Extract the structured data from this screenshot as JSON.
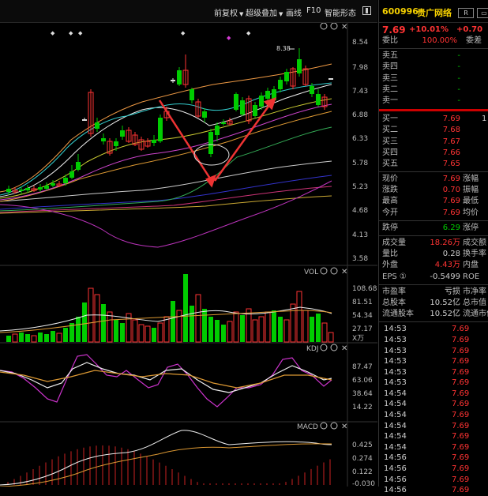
{
  "toolbar": {
    "items": [
      "前复权",
      "超级叠加",
      "画线",
      "F10",
      "智能形态"
    ]
  },
  "chart": {
    "price_axis": [
      "8.54",
      "7.98",
      "7.43",
      "6.88",
      "6.33",
      "5.78",
      "5.23",
      "4.68",
      "4.13",
      "3.58"
    ],
    "high_marker": "8.38",
    "vol_title": "VOL",
    "vol_axis": [
      "108.68",
      "81.51",
      "54.34",
      "27.17",
      "X万"
    ],
    "kdj_title": "KDJ",
    "kdj_axis": [
      "87.47",
      "63.06",
      "38.64",
      "14.22"
    ],
    "macd_title": "MACD",
    "macd_axis": [
      "0.425",
      "0.274",
      "0.122",
      "-0.030"
    ]
  },
  "quote": {
    "code": "600996",
    "name": "贵广网络",
    "btn_r": "R",
    "price": "7.69",
    "change_pct": "+10.01%",
    "change": "+0.70",
    "weibi_label": "委比",
    "weibi_value": "100.00%",
    "weicha_label": "委差",
    "sell": [
      {
        "label": "卖五",
        "price": "-"
      },
      {
        "label": "卖四",
        "price": "-"
      },
      {
        "label": "卖三",
        "price": "-"
      },
      {
        "label": "卖二",
        "price": "-"
      },
      {
        "label": "卖一",
        "price": "-"
      }
    ],
    "buy": [
      {
        "label": "买一",
        "price": "7.69",
        "vol": "1"
      },
      {
        "label": "买二",
        "price": "7.68"
      },
      {
        "label": "买三",
        "price": "7.67"
      },
      {
        "label": "买四",
        "price": "7.66"
      },
      {
        "label": "买五",
        "price": "7.65"
      }
    ],
    "stats": [
      {
        "l": "现价",
        "v": "7.69",
        "l2": "涨幅"
      },
      {
        "l": "涨跌",
        "v": "0.70",
        "l2": "振幅"
      },
      {
        "l": "最高",
        "v": "7.69",
        "l2": "最低"
      },
      {
        "l": "今开",
        "v": "7.69",
        "l2": "均价"
      }
    ],
    "limit": {
      "l": "跌停",
      "v": "6.29",
      "l2": "涨停"
    },
    "stats2": [
      {
        "l": "成交量",
        "v": "18.26万",
        "l2": "成交额"
      },
      {
        "l": "量比",
        "v": "0.28",
        "l2": "换手率"
      },
      {
        "l": "外盘",
        "v": "4.43万",
        "l2": "内盘"
      },
      {
        "l": "EPS ①",
        "v": "-0.5499",
        "l2": "ROE"
      }
    ],
    "stats3": [
      {
        "l": "市盈率",
        "v": "亏损",
        "l2": "市净率"
      },
      {
        "l": "总股本",
        "v": "10.52亿",
        "l2": "总市值"
      },
      {
        "l": "流通股本",
        "v": "10.52亿",
        "l2": "流通市值"
      }
    ],
    "ticks": [
      {
        "t": "14:53",
        "p": "7.69"
      },
      {
        "t": "14:53",
        "p": "7.69"
      },
      {
        "t": "14:53",
        "p": "7.69"
      },
      {
        "t": "14:53",
        "p": "7.69"
      },
      {
        "t": "14:53",
        "p": "7.69"
      },
      {
        "t": "14:53",
        "p": "7.69"
      },
      {
        "t": "14:54",
        "p": "7.69"
      },
      {
        "t": "14:54",
        "p": "7.69"
      },
      {
        "t": "14:54",
        "p": "7.69"
      },
      {
        "t": "14:54",
        "p": "7.69"
      },
      {
        "t": "14:54",
        "p": "7.69"
      },
      {
        "t": "14:54",
        "p": "7.69"
      },
      {
        "t": "14:56",
        "p": "7.69"
      },
      {
        "t": "14:56",
        "p": "7.69"
      },
      {
        "t": "14:56",
        "p": "7.69"
      },
      {
        "t": "14:56",
        "p": "7.69"
      }
    ]
  },
  "colors": {
    "up": "#ff3333",
    "down": "#00cc00",
    "code": "#f5d000"
  }
}
